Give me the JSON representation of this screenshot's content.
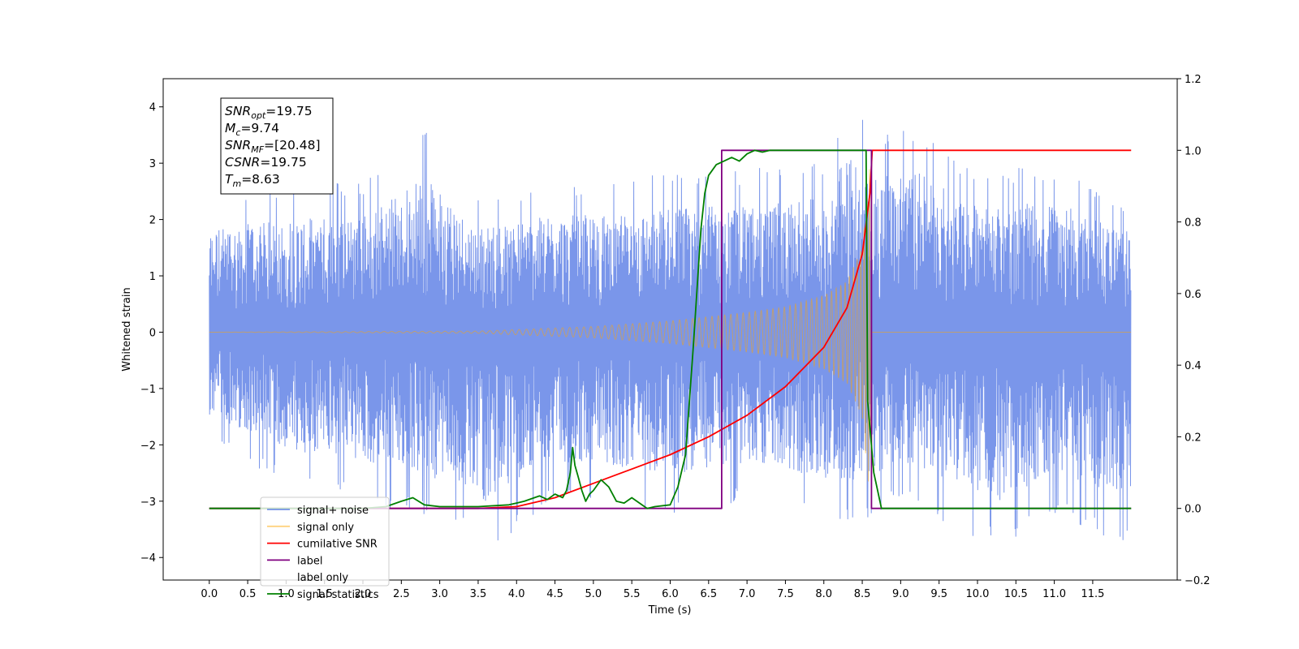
{
  "chart_data": {
    "type": "line",
    "xlabel": "Time (s)",
    "ylabel": "Whitened strain",
    "xlim": [
      -0.6,
      12.6
    ],
    "ylim_left": [
      -4.4,
      4.5
    ],
    "ylim_right": [
      -0.2,
      1.2
    ],
    "x_ticks": [
      "0.0",
      "0.5",
      "1.0",
      "1.5",
      "2.0",
      "2.5",
      "3.0",
      "3.5",
      "4.0",
      "4.5",
      "5.0",
      "5.5",
      "6.0",
      "6.5",
      "7.0",
      "7.5",
      "8.0",
      "8.5",
      "9.0",
      "9.5",
      "10.0",
      "10.5",
      "11.0",
      "11.5"
    ],
    "y_ticks_left": [
      "4",
      "3",
      "2",
      "1",
      "0",
      "−1",
      "−2",
      "−3",
      "−4"
    ],
    "y_ticks_right": [
      "1.2",
      "1.0",
      "0.8",
      "0.6",
      "0.4",
      "0.2",
      "0.0",
      "−0.2"
    ],
    "grid": false,
    "legend_position": "lower-left",
    "info_box": {
      "lines": [
        {
          "base": "SNR",
          "sub": "opt",
          "value": "=19.75"
        },
        {
          "base": "M",
          "sub": "c",
          "value": "=9.74"
        },
        {
          "base": "SNR",
          "sub": "MF",
          "value": "=[20.48]"
        },
        {
          "base": "CSNR",
          "sub": "",
          "value": "=19.75"
        },
        {
          "base": "T",
          "sub": "m",
          "value": "=8.63"
        }
      ]
    },
    "legend": [
      {
        "label": "signal+ noise",
        "color": "#4169e1",
        "opacity": 0.7
      },
      {
        "label": "signal only",
        "color": "#ffa500",
        "opacity": 0.5
      },
      {
        "label": "cumilative SNR",
        "color": "#ff0000",
        "opacity": 1
      },
      {
        "label": "label",
        "color": "#800080",
        "opacity": 1
      },
      {
        "label": "label only",
        "color": "#ffffff",
        "opacity": 1
      },
      {
        "label": "signal statistics",
        "color": "#008000",
        "opacity": 1
      }
    ],
    "series": [
      {
        "name": "signal+ noise",
        "axis": "left",
        "color": "#4169e1",
        "style": "dense noise band",
        "x_range": [
          0,
          12
        ],
        "envelope_max": [
          [
            0,
            2.4
          ],
          [
            1,
            2.6
          ],
          [
            2,
            2.7
          ],
          [
            2.8,
            3.6
          ],
          [
            3.5,
            2.4
          ],
          [
            4.5,
            2.7
          ],
          [
            5.5,
            2.7
          ],
          [
            6,
            2.9
          ],
          [
            7,
            2.9
          ],
          [
            8,
            3.1
          ],
          [
            8.3,
            4.1
          ],
          [
            8.6,
            3.7
          ],
          [
            9.2,
            3.7
          ],
          [
            10,
            2.9
          ],
          [
            11,
            3.0
          ],
          [
            12,
            2.3
          ]
        ],
        "envelope_min": [
          [
            0,
            -1.9
          ],
          [
            1,
            -2.7
          ],
          [
            2,
            -3.0
          ],
          [
            3,
            -3.4
          ],
          [
            3.6,
            -3.9
          ],
          [
            4.5,
            -3.0
          ],
          [
            5,
            -3.0
          ],
          [
            6,
            -3.3
          ],
          [
            7,
            -3.0
          ],
          [
            8.4,
            -3.5
          ],
          [
            8.6,
            -3.3
          ],
          [
            9,
            -3.0
          ],
          [
            10.3,
            -3.9
          ],
          [
            11,
            -3.2
          ],
          [
            11.9,
            -3.8
          ]
        ]
      },
      {
        "name": "signal only",
        "axis": "left",
        "color": "#ffa500",
        "style": "chirp",
        "amplitude": [
          [
            0,
            0.0
          ],
          [
            3.5,
            0.02
          ],
          [
            5,
            0.1
          ],
          [
            6,
            0.2
          ],
          [
            7,
            0.35
          ],
          [
            7.5,
            0.45
          ],
          [
            8,
            0.65
          ],
          [
            8.3,
            0.9
          ],
          [
            8.5,
            1.5
          ],
          [
            8.6,
            3.0
          ],
          [
            8.62,
            0
          ]
        ]
      },
      {
        "name": "cumilative SNR",
        "axis": "right",
        "color": "#ff0000",
        "x": [
          0,
          3.5,
          4,
          4.5,
          5,
          5.5,
          6,
          6.5,
          7,
          7.5,
          8,
          8.3,
          8.5,
          8.6,
          8.63,
          12
        ],
        "y": [
          0,
          0,
          0.005,
          0.03,
          0.07,
          0.11,
          0.15,
          0.2,
          0.26,
          0.34,
          0.45,
          0.56,
          0.71,
          0.88,
          1.0,
          1.0
        ]
      },
      {
        "name": "label",
        "axis": "right",
        "color": "#800080",
        "x": [
          0,
          6.67,
          6.67,
          8.62,
          8.62,
          12
        ],
        "y": [
          0,
          0,
          1,
          1,
          0,
          0
        ]
      },
      {
        "name": "signal statistics",
        "axis": "right",
        "color": "#008000",
        "x": [
          0,
          2,
          2.3,
          2.5,
          2.65,
          2.8,
          3,
          3.5,
          3.9,
          4.1,
          4.3,
          4.4,
          4.5,
          4.6,
          4.65,
          4.7,
          4.73,
          4.76,
          4.8,
          4.85,
          4.9,
          4.95,
          5,
          5.1,
          5.2,
          5.3,
          5.4,
          5.5,
          5.6,
          5.7,
          5.8,
          6,
          6.1,
          6.2,
          6.3,
          6.4,
          6.45,
          6.5,
          6.6,
          6.7,
          6.8,
          6.9,
          7,
          7.1,
          7.2,
          7.3,
          7.4,
          8.55,
          8.57,
          8.65,
          8.75,
          12
        ],
        "y": [
          0,
          0,
          0.005,
          0.02,
          0.03,
          0.01,
          0.005,
          0.005,
          0.01,
          0.02,
          0.035,
          0.025,
          0.04,
          0.03,
          0.05,
          0.1,
          0.17,
          0.12,
          0.09,
          0.05,
          0.02,
          0.04,
          0.05,
          0.08,
          0.06,
          0.02,
          0.015,
          0.03,
          0.015,
          0.0,
          0.005,
          0.01,
          0.06,
          0.15,
          0.45,
          0.78,
          0.88,
          0.93,
          0.96,
          0.97,
          0.98,
          0.97,
          0.99,
          1.0,
          0.995,
          1.0,
          1.0,
          1.0,
          0.3,
          0.1,
          0.0,
          0.0
        ]
      }
    ]
  }
}
